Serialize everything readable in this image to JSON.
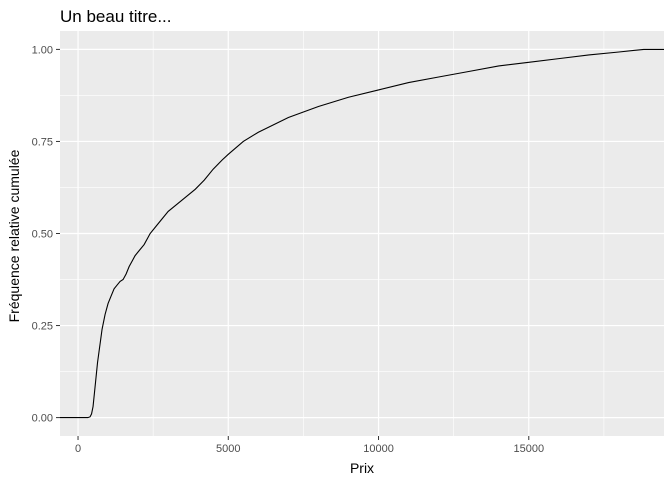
{
  "chart_data": {
    "type": "line",
    "title": "Un beau titre...",
    "xlabel": "Prix",
    "ylabel": "Fréquence relative cumulée",
    "xlim": [
      -600,
      19500
    ],
    "ylim": [
      -0.05,
      1.05
    ],
    "x_ticks": [
      0,
      5000,
      10000,
      15000
    ],
    "x_tick_labels": [
      "0",
      "5000",
      "10000",
      "15000"
    ],
    "y_ticks": [
      0,
      0.25,
      0.5,
      0.75,
      1
    ],
    "y_tick_labels": [
      "0.00",
      "0.25",
      "0.50",
      "0.75",
      "1.00"
    ],
    "grid": true,
    "legend": "none",
    "series": [
      {
        "x": [
          -600,
          326,
          400,
          450,
          500,
          550,
          600,
          650,
          700,
          750,
          800,
          900,
          1000,
          1100,
          1200,
          1300,
          1400,
          1500,
          1600,
          1700,
          1800,
          1900,
          2000,
          2200,
          2400,
          2600,
          2800,
          3000,
          3300,
          3600,
          3900,
          4200,
          4500,
          4800,
          5000,
          5500,
          6000,
          6500,
          7000,
          7500,
          8000,
          9000,
          10000,
          11000,
          12000,
          13000,
          14000,
          15000,
          16000,
          17000,
          18000,
          18823,
          19500
        ],
        "y": [
          0,
          0,
          0.002,
          0.01,
          0.03,
          0.07,
          0.11,
          0.15,
          0.18,
          0.21,
          0.24,
          0.28,
          0.31,
          0.33,
          0.35,
          0.36,
          0.37,
          0.375,
          0.39,
          0.41,
          0.425,
          0.44,
          0.45,
          0.47,
          0.5,
          0.52,
          0.54,
          0.56,
          0.58,
          0.6,
          0.62,
          0.645,
          0.675,
          0.7,
          0.715,
          0.75,
          0.775,
          0.795,
          0.815,
          0.83,
          0.845,
          0.87,
          0.89,
          0.91,
          0.925,
          0.94,
          0.955,
          0.965,
          0.975,
          0.985,
          0.993,
          1.0,
          1.0
        ]
      }
    ],
    "colors": {
      "panel": "#ebebeb",
      "grid_major": "#ffffff",
      "line": "#000000",
      "tick_text": "#4d4d4d"
    }
  }
}
